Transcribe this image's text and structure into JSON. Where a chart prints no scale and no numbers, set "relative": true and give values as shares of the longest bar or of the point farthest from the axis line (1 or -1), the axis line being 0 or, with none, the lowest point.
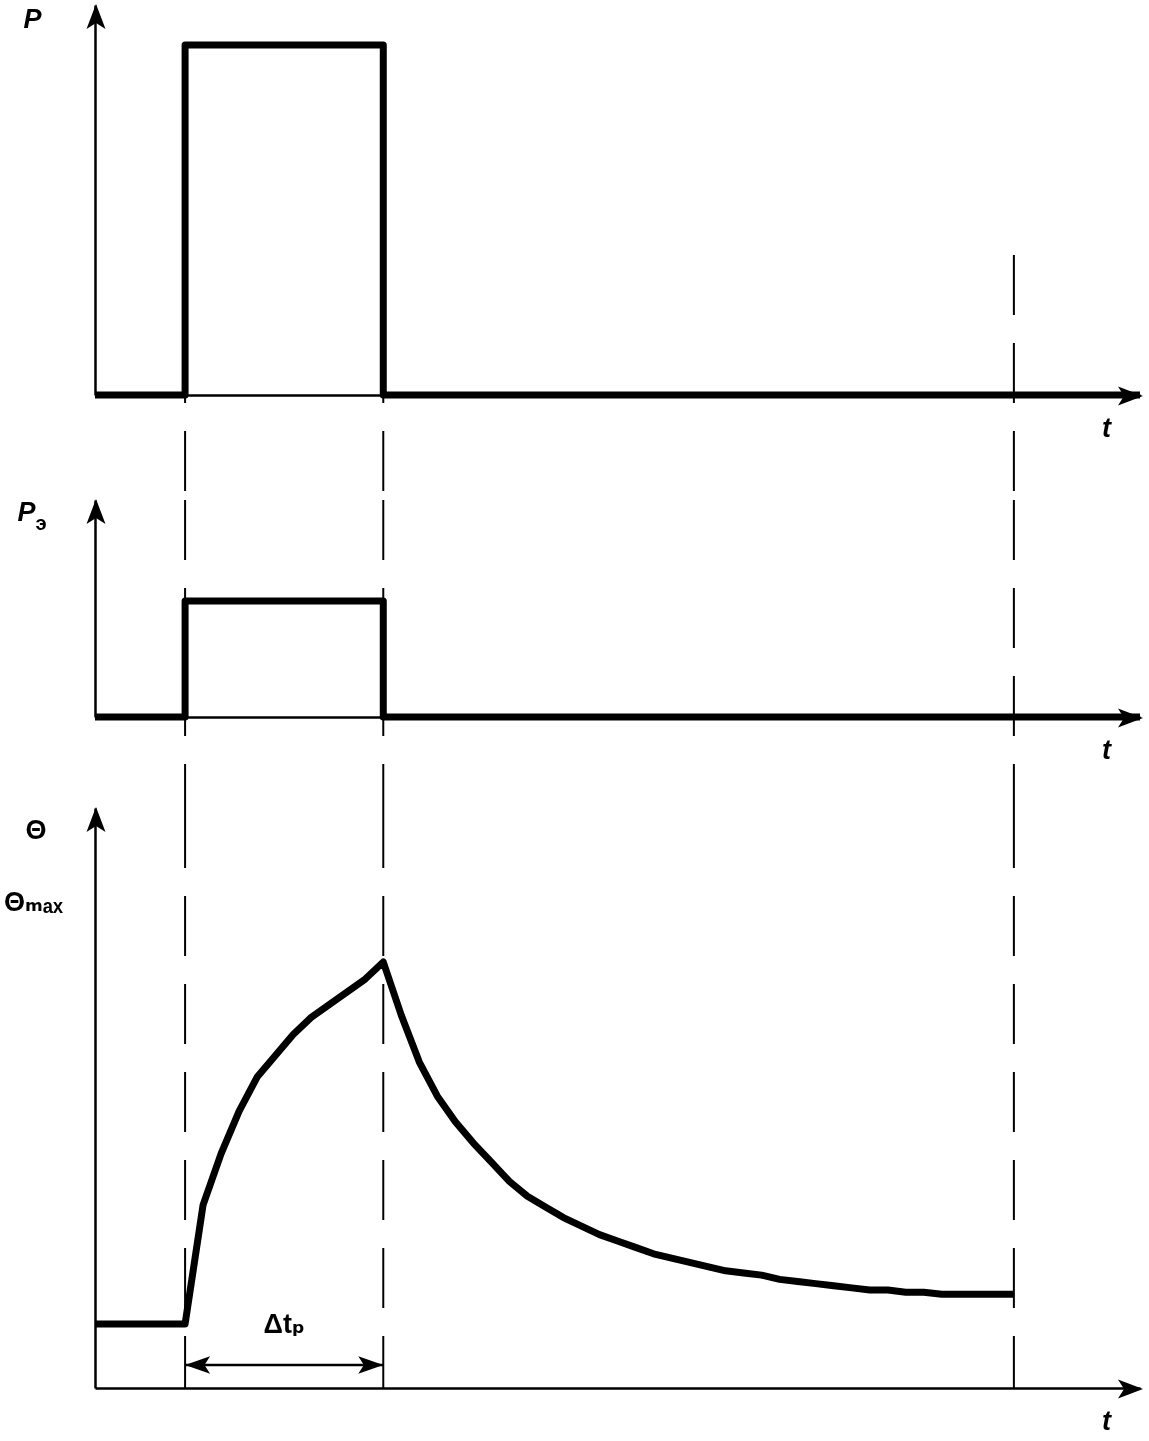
{
  "chart_data": [
    {
      "type": "step",
      "ylabel": "P",
      "xlabel": "t",
      "relative": true,
      "grid": "x",
      "categories": [
        null,
        null,
        null,
        null,
        null,
        null,
        null,
        null,
        null,
        null,
        null,
        null,
        null,
        null,
        null,
        null,
        null,
        null,
        null,
        null,
        null,
        null,
        null,
        null,
        null,
        null,
        null,
        null,
        null,
        null,
        null,
        null,
        null,
        null,
        null,
        null,
        null,
        null,
        null,
        null,
        null,
        null,
        null,
        null,
        null,
        null,
        null,
        null,
        null,
        null,
        null,
        null,
        null,
        null,
        null,
        null,
        null,
        null,
        null
      ],
      "color": "#000000",
      "values": [
        0,
        0,
        0,
        0,
        0,
        1,
        1,
        1,
        1,
        1,
        1,
        1,
        1,
        1,
        1,
        1,
        0,
        0,
        0,
        0,
        0,
        0,
        0,
        0,
        0,
        0,
        0,
        0,
        0,
        0,
        0,
        0,
        0,
        0,
        0,
        0,
        0,
        0,
        0,
        0,
        0,
        0,
        0,
        0,
        0,
        0,
        0,
        0,
        0,
        0,
        0,
        0,
        0,
        0,
        0,
        0,
        0,
        0,
        0
      ]
    },
    {
      "type": "step",
      "ylabel": "P$_{э}$",
      "xlabel": "t",
      "relative": true,
      "grid": "x",
      "categories": [
        null,
        null,
        null,
        null,
        null,
        null,
        null,
        null,
        null,
        null,
        null,
        null,
        null,
        null,
        null,
        null,
        null,
        null,
        null,
        null,
        null,
        null,
        null,
        null,
        null,
        null,
        null,
        null,
        null,
        null,
        null,
        null,
        null,
        null,
        null,
        null,
        null,
        null,
        null,
        null,
        null,
        null,
        null,
        null,
        null,
        null,
        null,
        null,
        null,
        null,
        null,
        null,
        null,
        null,
        null,
        null,
        null,
        null,
        null
      ],
      "color": "#000000",
      "values": [
        0,
        0,
        0,
        0,
        0,
        1,
        1,
        1,
        1,
        1,
        1,
        1,
        1,
        1,
        1,
        1,
        0,
        0,
        0,
        0,
        0,
        0,
        0,
        0,
        0,
        0,
        0,
        0,
        0,
        0,
        0,
        0,
        0,
        0,
        0,
        0,
        0,
        0,
        0,
        0,
        0,
        0,
        0,
        0,
        0,
        0,
        0,
        0,
        0,
        0,
        0,
        0,
        0,
        0,
        0,
        0,
        0,
        0,
        0
      ]
    },
    {
      "type": "line",
      "ylabel": "Θ",
      "xlabel": "t",
      "relative": true,
      "grid": "x",
      "categories": [
        null,
        null,
        null,
        null,
        null,
        null,
        null,
        null,
        null,
        null,
        null,
        null,
        null,
        null,
        null,
        null,
        null,
        null,
        null,
        null,
        null,
        null,
        null,
        null,
        null,
        null,
        null,
        null,
        null,
        null,
        null,
        null,
        null,
        null,
        null,
        null,
        null,
        null,
        null,
        null,
        null,
        null,
        null,
        null,
        null,
        null,
        null,
        null,
        null,
        null,
        null,
        null,
        null,
        null,
        null,
        null,
        null,
        null,
        null
      ],
      "color": "#000000",
      "values": [
        0.15,
        0.15,
        0.15,
        0.15,
        0.15,
        0.15,
        0.43,
        0.55,
        0.65,
        0.73,
        0.78,
        0.83,
        0.87,
        0.9,
        0.93,
        0.96,
        1.0,
        0.875,
        0.765,
        0.685,
        0.625,
        0.575,
        0.53,
        0.485,
        0.45,
        0.425,
        0.4,
        0.38,
        0.36,
        0.345,
        0.33,
        0.315,
        0.305,
        0.295,
        0.285,
        0.275,
        0.27,
        0.265,
        0.255,
        0.25,
        0.245,
        0.24,
        0.235,
        0.23,
        0.23,
        0.225,
        0.225,
        0.22,
        0.22,
        0.22,
        0.22,
        0.22,
        null,
        null,
        null,
        null,
        null,
        null,
        null
      ],
      "annotations": [
        "Θₘₐₓ",
        "Δtₚ"
      ]
    }
  ]
}
